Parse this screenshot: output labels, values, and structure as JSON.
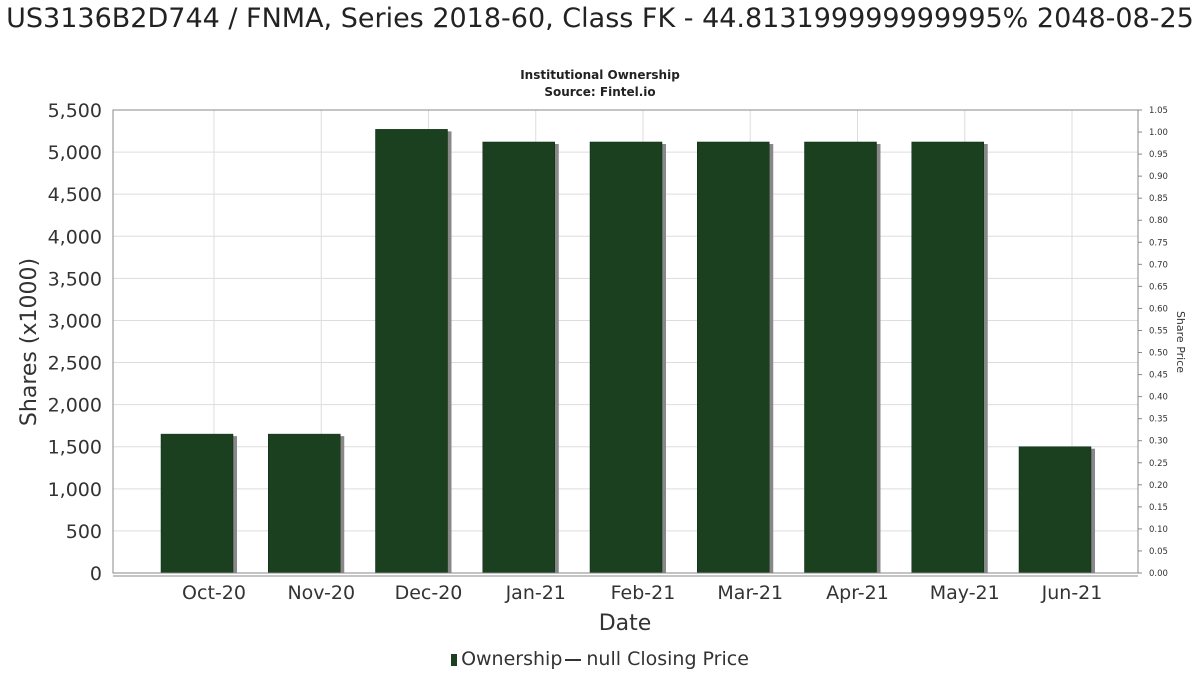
{
  "title": "US3136B2D744 / FNMA, Series 2018-60, Class FK - 44.813199999999995% 2048-08-25",
  "subtitle": "Institutional Ownership",
  "source": "Source: Fintel.io",
  "legend": {
    "ownership": "Ownership",
    "closing_price": "null Closing Price"
  },
  "colors": {
    "bar": "#1a4020",
    "bar_shadow": "#888888",
    "grid": "#dddddd",
    "axis": "#888888"
  },
  "chart_data": {
    "type": "bar",
    "xlabel": "Date",
    "ylabel": "Shares (x1000)",
    "y2label": "Share Price",
    "categories": [
      "Oct-20",
      "Nov-20",
      "Dec-20",
      "Jan-21",
      "Feb-21",
      "Mar-21",
      "Apr-21",
      "May-21",
      "Jun-21"
    ],
    "series": [
      {
        "name": "Ownership",
        "values": [
          1650,
          1650,
          5270,
          5120,
          5120,
          5120,
          5120,
          5120,
          1500
        ]
      }
    ],
    "ylim": [
      0,
      5500
    ],
    "yticks": [
      "0",
      "500",
      "1,000",
      "1,500",
      "2,000",
      "2,500",
      "3,000",
      "3,500",
      "4,000",
      "4,500",
      "5,000",
      "5,500"
    ],
    "y2lim": [
      0,
      1.05
    ],
    "y2ticks": [
      "0.00",
      "0.05",
      "0.10",
      "0.15",
      "0.20",
      "0.25",
      "0.30",
      "0.35",
      "0.40",
      "0.45",
      "0.50",
      "0.55",
      "0.60",
      "0.65",
      "0.70",
      "0.75",
      "0.80",
      "0.85",
      "0.90",
      "0.95",
      "1.00",
      "1.05"
    ],
    "grid": true,
    "legend_position": "bottom"
  }
}
